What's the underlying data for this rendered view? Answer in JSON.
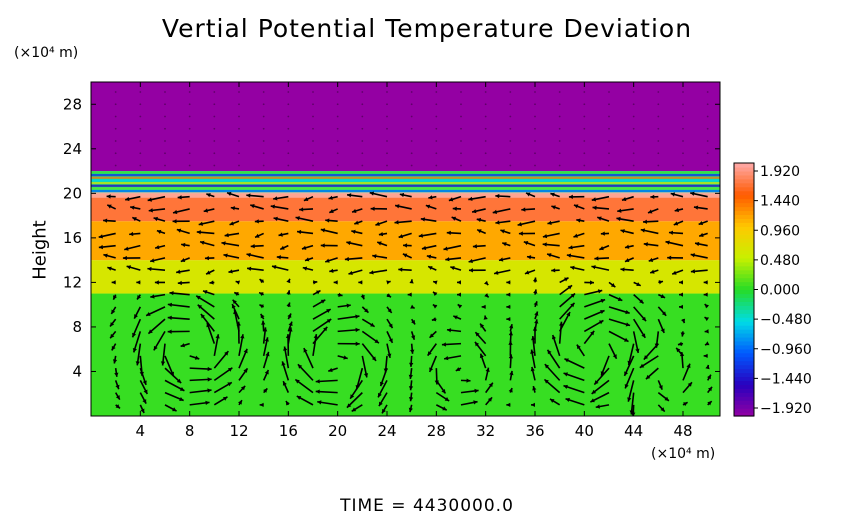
{
  "chart_data": {
    "type": "heatmap",
    "title": "Vertial Potential Temperature Deviation",
    "ylabel": "Height",
    "y_unit": "(×10⁴ m)",
    "x_unit": "(×10⁴ m)",
    "footer": "TIME = 4430000.0",
    "xlim": [
      0,
      51
    ],
    "ylim": [
      0,
      30
    ],
    "x_ticks": [
      "4",
      "8",
      "12",
      "16",
      "20",
      "24",
      "28",
      "32",
      "36",
      "40",
      "44",
      "48"
    ],
    "y_ticks": [
      "4",
      "8",
      "12",
      "16",
      "20",
      "24",
      "28"
    ],
    "colorbar": {
      "range": [
        -1.92,
        1.92
      ],
      "tick_labels": [
        "1.920",
        "1.440",
        "0.960",
        "0.480",
        "0.000",
        "−0.480",
        "−0.960",
        "−1.440",
        "−1.920"
      ]
    },
    "layers": [
      {
        "y_from": 0,
        "y_to": 11,
        "value": 0.05,
        "description": "green layer"
      },
      {
        "y_from": 11,
        "y_to": 14,
        "value": 0.6,
        "description": "yellow layer"
      },
      {
        "y_from": 14,
        "y_to": 17.5,
        "value": 1.1,
        "description": "orange layer"
      },
      {
        "y_from": 17.5,
        "y_to": 20,
        "value": 1.6,
        "description": "red layer"
      },
      {
        "y_from": 20,
        "y_to": 22,
        "value": -0.3,
        "description": "mixed blue/green band"
      },
      {
        "y_from": 22,
        "y_to": 30,
        "value": -1.92,
        "description": "purple layer"
      }
    ],
    "vectors": "velocity arrows over the domain, rows every ~1.1 units below 20; circulation cells near x=8, x=20, x=40, x=46"
  },
  "colors": {
    "purple": "#9400a3",
    "green": "#26dc26",
    "yellow": "#e8f000",
    "orange": "#ffa60a",
    "red": "#ff1e16"
  }
}
